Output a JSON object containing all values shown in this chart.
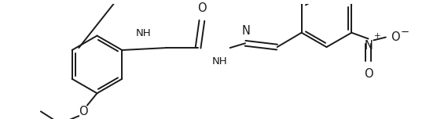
{
  "bg_color": "#ffffff",
  "line_color": "#1a1a1a",
  "line_width": 1.4,
  "font_size": 9.5,
  "figsize": [
    5.7,
    1.52
  ],
  "dpi": 100,
  "xlim": [
    0,
    570
  ],
  "ylim": [
    0,
    152
  ]
}
